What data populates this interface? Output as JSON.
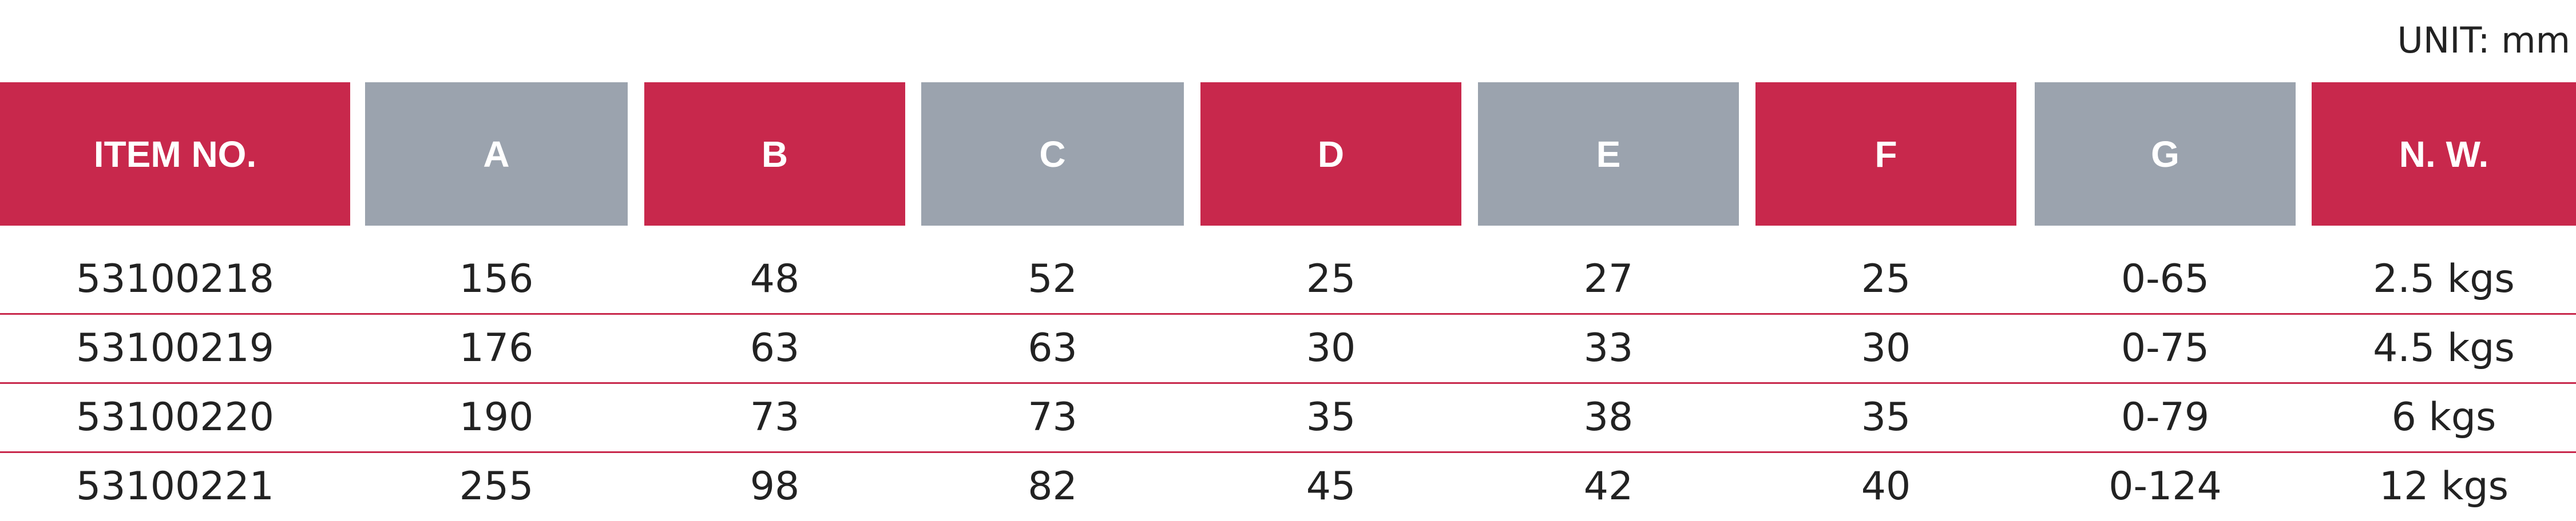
{
  "header": {
    "unit": "UNIT: mm"
  },
  "table": {
    "columns": [
      "ITEM NO.",
      "A",
      "B",
      "C",
      "D",
      "E",
      "F",
      "G",
      "N. W."
    ],
    "rows": [
      [
        "53100218",
        "156",
        "48",
        "52",
        "25",
        "27",
        "25",
        "0-65",
        "2.5 kgs"
      ],
      [
        "53100219",
        "176",
        "63",
        "63",
        "30",
        "33",
        "30",
        "0-75",
        "4.5 kgs"
      ],
      [
        "53100220",
        "190",
        "73",
        "73",
        "35",
        "38",
        "35",
        "0-79",
        "6 kgs"
      ],
      [
        "53100221",
        "255",
        "98",
        "82",
        "45",
        "42",
        "40",
        "0-124",
        "12 kgs"
      ]
    ]
  }
}
